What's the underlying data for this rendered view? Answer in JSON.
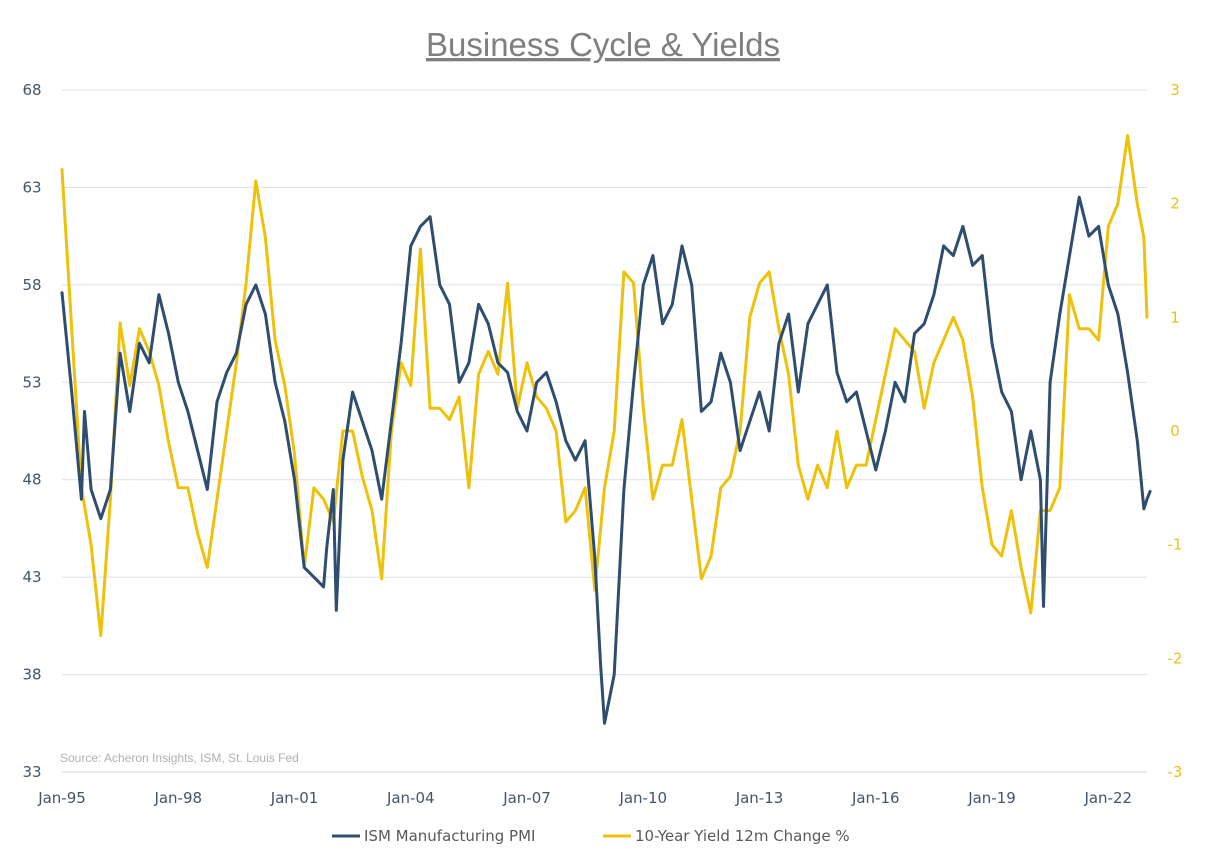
{
  "chart_data": {
    "type": "line",
    "title": "Business Cycle & Yields",
    "source": "Source: Acheron Insights, ISM, St. Louis Fed",
    "x_ticks": [
      "Jan-95",
      "Jan-98",
      "Jan-01",
      "Jan-04",
      "Jan-07",
      "Jan-10",
      "Jan-13",
      "Jan-16",
      "Jan-19",
      "Jan-22"
    ],
    "x_range": [
      "Jan-95",
      "Dec-22"
    ],
    "y_left": {
      "ticks": [
        "33",
        "38",
        "43",
        "48",
        "53",
        "58",
        "63",
        "68"
      ],
      "range": [
        33,
        68
      ]
    },
    "y_right": {
      "ticks": [
        "-3",
        "-2",
        "-1",
        "0",
        "1",
        "2",
        "3"
      ],
      "range": [
        -3,
        3
      ]
    },
    "grid": true,
    "legend_position": "bottom",
    "series": [
      {
        "name": "ISM Manufacturing PMI",
        "axis": "left",
        "color": "#2e4d6f",
        "points": [
          [
            1995.0,
            57.6
          ],
          [
            1995.25,
            52.5
          ],
          [
            1995.5,
            47.0
          ],
          [
            1995.58,
            51.5
          ],
          [
            1995.75,
            47.5
          ],
          [
            1996.0,
            46.0
          ],
          [
            1996.25,
            47.5
          ],
          [
            1996.5,
            54.5
          ],
          [
            1996.75,
            51.5
          ],
          [
            1997.0,
            55.0
          ],
          [
            1997.25,
            54.0
          ],
          [
            1997.5,
            57.5
          ],
          [
            1997.75,
            55.5
          ],
          [
            1998.0,
            53.0
          ],
          [
            1998.25,
            51.5
          ],
          [
            1998.5,
            49.5
          ],
          [
            1998.75,
            47.5
          ],
          [
            1999.0,
            52.0
          ],
          [
            1999.25,
            53.5
          ],
          [
            1999.5,
            54.5
          ],
          [
            1999.75,
            57.0
          ],
          [
            2000.0,
            58.0
          ],
          [
            2000.25,
            56.5
          ],
          [
            2000.5,
            53.0
          ],
          [
            2000.75,
            51.0
          ],
          [
            2001.0,
            48.0
          ],
          [
            2001.25,
            43.5
          ],
          [
            2001.5,
            43.0
          ],
          [
            2001.75,
            42.5
          ],
          [
            2001.83,
            44.5
          ],
          [
            2002.0,
            47.5
          ],
          [
            2002.08,
            41.3
          ],
          [
            2002.25,
            49.0
          ],
          [
            2002.5,
            52.5
          ],
          [
            2002.75,
            51.0
          ],
          [
            2003.0,
            49.5
          ],
          [
            2003.25,
            47.0
          ],
          [
            2003.5,
            51.0
          ],
          [
            2003.75,
            55.0
          ],
          [
            2004.0,
            60.0
          ],
          [
            2004.25,
            61.0
          ],
          [
            2004.5,
            61.5
          ],
          [
            2004.75,
            58.0
          ],
          [
            2005.0,
            57.0
          ],
          [
            2005.25,
            53.0
          ],
          [
            2005.5,
            54.0
          ],
          [
            2005.75,
            57.0
          ],
          [
            2006.0,
            56.0
          ],
          [
            2006.25,
            54.0
          ],
          [
            2006.5,
            53.5
          ],
          [
            2006.75,
            51.5
          ],
          [
            2007.0,
            50.5
          ],
          [
            2007.25,
            53.0
          ],
          [
            2007.5,
            53.5
          ],
          [
            2007.75,
            52.0
          ],
          [
            2008.0,
            50.0
          ],
          [
            2008.25,
            49.0
          ],
          [
            2008.5,
            50.0
          ],
          [
            2008.75,
            44.0
          ],
          [
            2008.9,
            38.5
          ],
          [
            2009.0,
            35.5
          ],
          [
            2009.25,
            38.0
          ],
          [
            2009.5,
            47.5
          ],
          [
            2009.75,
            53.0
          ],
          [
            2010.0,
            58.0
          ],
          [
            2010.25,
            59.5
          ],
          [
            2010.5,
            56.0
          ],
          [
            2010.75,
            57.0
          ],
          [
            2011.0,
            60.0
          ],
          [
            2011.25,
            58.0
          ],
          [
            2011.5,
            51.5
          ],
          [
            2011.75,
            52.0
          ],
          [
            2012.0,
            54.5
          ],
          [
            2012.25,
            53.0
          ],
          [
            2012.5,
            49.5
          ],
          [
            2012.75,
            51.0
          ],
          [
            2013.0,
            52.5
          ],
          [
            2013.25,
            50.5
          ],
          [
            2013.5,
            55.0
          ],
          [
            2013.75,
            56.5
          ],
          [
            2014.0,
            52.5
          ],
          [
            2014.25,
            56.0
          ],
          [
            2014.5,
            57.0
          ],
          [
            2014.75,
            58.0
          ],
          [
            2015.0,
            53.5
          ],
          [
            2015.25,
            52.0
          ],
          [
            2015.5,
            52.5
          ],
          [
            2015.75,
            50.5
          ],
          [
            2016.0,
            48.5
          ],
          [
            2016.25,
            50.5
          ],
          [
            2016.5,
            53.0
          ],
          [
            2016.75,
            52.0
          ],
          [
            2017.0,
            55.5
          ],
          [
            2017.25,
            56.0
          ],
          [
            2017.5,
            57.5
          ],
          [
            2017.75,
            60.0
          ],
          [
            2018.0,
            59.5
          ],
          [
            2018.25,
            61.0
          ],
          [
            2018.5,
            59.0
          ],
          [
            2018.75,
            59.5
          ],
          [
            2019.0,
            55.0
          ],
          [
            2019.25,
            52.5
          ],
          [
            2019.5,
            51.5
          ],
          [
            2019.75,
            48.0
          ],
          [
            2020.0,
            50.5
          ],
          [
            2020.25,
            48.0
          ],
          [
            2020.33,
            41.5
          ],
          [
            2020.5,
            53.0
          ],
          [
            2020.75,
            56.5
          ],
          [
            2021.0,
            59.5
          ],
          [
            2021.25,
            62.5
          ],
          [
            2021.5,
            60.5
          ],
          [
            2021.75,
            61.0
          ],
          [
            2022.0,
            58.0
          ],
          [
            2022.25,
            56.5
          ],
          [
            2022.5,
            53.5
          ],
          [
            2022.75,
            50.0
          ],
          [
            2022.92,
            46.5
          ],
          [
            2023.0,
            47.0
          ],
          [
            2023.08,
            47.4
          ]
        ]
      },
      {
        "name": "10-Year Yield 12m Change %",
        "axis": "right",
        "color": "#eec10b",
        "points": [
          [
            1995.0,
            2.3
          ],
          [
            1995.25,
            0.9
          ],
          [
            1995.5,
            -0.5
          ],
          [
            1995.75,
            -1.0
          ],
          [
            1996.0,
            -1.8
          ],
          [
            1996.25,
            -0.6
          ],
          [
            1996.5,
            0.95
          ],
          [
            1996.75,
            0.4
          ],
          [
            1997.0,
            0.9
          ],
          [
            1997.25,
            0.7
          ],
          [
            1997.5,
            0.4
          ],
          [
            1997.75,
            -0.1
          ],
          [
            1998.0,
            -0.5
          ],
          [
            1998.25,
            -0.5
          ],
          [
            1998.5,
            -0.9
          ],
          [
            1998.75,
            -1.2
          ],
          [
            1999.0,
            -0.6
          ],
          [
            1999.25,
            0.0
          ],
          [
            1999.5,
            0.6
          ],
          [
            1999.75,
            1.3
          ],
          [
            2000.0,
            2.2
          ],
          [
            2000.25,
            1.7
          ],
          [
            2000.5,
            0.8
          ],
          [
            2000.75,
            0.4
          ],
          [
            2001.0,
            -0.2
          ],
          [
            2001.25,
            -1.2
          ],
          [
            2001.5,
            -0.5
          ],
          [
            2001.75,
            -0.6
          ],
          [
            2002.0,
            -0.8
          ],
          [
            2002.25,
            0.0
          ],
          [
            2002.5,
            0.0
          ],
          [
            2002.75,
            -0.4
          ],
          [
            2003.0,
            -0.7
          ],
          [
            2003.25,
            -1.3
          ],
          [
            2003.5,
            0.0
          ],
          [
            2003.75,
            0.6
          ],
          [
            2004.0,
            0.4
          ],
          [
            2004.25,
            1.6
          ],
          [
            2004.5,
            0.2
          ],
          [
            2004.75,
            0.2
          ],
          [
            2005.0,
            0.1
          ],
          [
            2005.25,
            0.3
          ],
          [
            2005.5,
            -0.5
          ],
          [
            2005.75,
            0.5
          ],
          [
            2006.0,
            0.7
          ],
          [
            2006.25,
            0.5
          ],
          [
            2006.5,
            1.3
          ],
          [
            2006.75,
            0.2
          ],
          [
            2007.0,
            0.6
          ],
          [
            2007.25,
            0.3
          ],
          [
            2007.5,
            0.2
          ],
          [
            2007.75,
            0.0
          ],
          [
            2008.0,
            -0.8
          ],
          [
            2008.25,
            -0.7
          ],
          [
            2008.5,
            -0.5
          ],
          [
            2008.75,
            -1.4
          ],
          [
            2009.0,
            -0.5
          ],
          [
            2009.25,
            0.0
          ],
          [
            2009.5,
            1.4
          ],
          [
            2009.75,
            1.3
          ],
          [
            2010.0,
            0.2
          ],
          [
            2010.25,
            -0.6
          ],
          [
            2010.5,
            -0.3
          ],
          [
            2010.75,
            -0.3
          ],
          [
            2011.0,
            0.1
          ],
          [
            2011.25,
            -0.6
          ],
          [
            2011.5,
            -1.3
          ],
          [
            2011.75,
            -1.1
          ],
          [
            2012.0,
            -0.5
          ],
          [
            2012.25,
            -0.4
          ],
          [
            2012.5,
            0.0
          ],
          [
            2012.75,
            1.0
          ],
          [
            2013.0,
            1.3
          ],
          [
            2013.25,
            1.4
          ],
          [
            2013.5,
            0.9
          ],
          [
            2013.75,
            0.5
          ],
          [
            2014.0,
            -0.3
          ],
          [
            2014.25,
            -0.6
          ],
          [
            2014.5,
            -0.3
          ],
          [
            2014.75,
            -0.5
          ],
          [
            2015.0,
            0.0
          ],
          [
            2015.25,
            -0.5
          ],
          [
            2015.5,
            -0.3
          ],
          [
            2015.75,
            -0.3
          ],
          [
            2016.0,
            0.1
          ],
          [
            2016.25,
            0.5
          ],
          [
            2016.5,
            0.9
          ],
          [
            2016.75,
            0.8
          ],
          [
            2017.0,
            0.7
          ],
          [
            2017.25,
            0.2
          ],
          [
            2017.5,
            0.6
          ],
          [
            2017.75,
            0.8
          ],
          [
            2018.0,
            1.0
          ],
          [
            2018.25,
            0.8
          ],
          [
            2018.5,
            0.3
          ],
          [
            2018.75,
            -0.5
          ],
          [
            2019.0,
            -1.0
          ],
          [
            2019.25,
            -1.1
          ],
          [
            2019.5,
            -0.7
          ],
          [
            2019.75,
            -1.2
          ],
          [
            2020.0,
            -1.6
          ],
          [
            2020.25,
            -0.7
          ],
          [
            2020.5,
            -0.7
          ],
          [
            2020.75,
            -0.5
          ],
          [
            2021.0,
            1.2
          ],
          [
            2021.25,
            0.9
          ],
          [
            2021.5,
            0.9
          ],
          [
            2021.75,
            0.8
          ],
          [
            2022.0,
            1.8
          ],
          [
            2022.25,
            2.0
          ],
          [
            2022.5,
            2.6
          ],
          [
            2022.75,
            2.0
          ],
          [
            2022.92,
            1.7
          ],
          [
            2023.0,
            1.0
          ]
        ]
      }
    ]
  },
  "legend": {
    "items": [
      {
        "label": "ISM Manufacturing PMI",
        "color": "#2e4d6f"
      },
      {
        "label": "10-Year Yield 12m Change %",
        "color": "#eec10b"
      }
    ]
  }
}
